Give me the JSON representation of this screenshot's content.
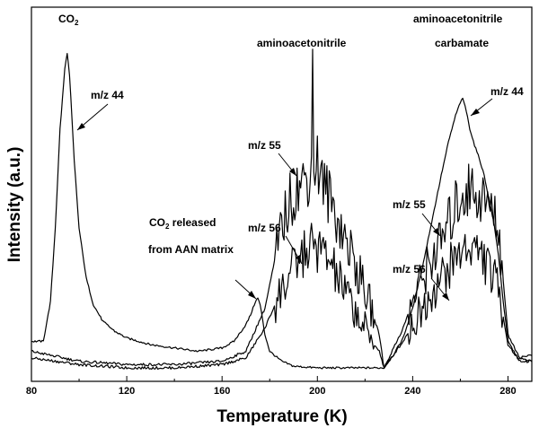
{
  "chart_data": {
    "type": "line",
    "title": "",
    "xlabel": "Temperature (K)",
    "ylabel": "Intensity (a.u.)",
    "xlim": [
      80,
      290
    ],
    "ylim": [
      0,
      1.0
    ],
    "grid": false,
    "xticks": [
      "80",
      "120",
      "160",
      "200",
      "240",
      "280"
    ],
    "series": [
      {
        "name": "m/z 44",
        "x": [
          80,
          85,
          88,
          90,
          92,
          94,
          95,
          96,
          98,
          100,
          103,
          106,
          110,
          115,
          120,
          130,
          140,
          150,
          160,
          165,
          168,
          170,
          172,
          174,
          175,
          176,
          178,
          180,
          185,
          190,
          200,
          210,
          220,
          228,
          232,
          236,
          240,
          244,
          248,
          252,
          255,
          258,
          260,
          261,
          262,
          264,
          266,
          268,
          270,
          272,
          274,
          276,
          278,
          280,
          284,
          290
        ],
        "y": [
          0.08,
          0.08,
          0.2,
          0.42,
          0.72,
          0.9,
          0.95,
          0.88,
          0.62,
          0.42,
          0.27,
          0.19,
          0.14,
          0.11,
          0.09,
          0.07,
          0.06,
          0.05,
          0.06,
          0.08,
          0.11,
          0.13,
          0.16,
          0.2,
          0.21,
          0.19,
          0.1,
          0.05,
          0.02,
          0.005,
          0.0,
          0.0,
          0.0,
          0.0,
          0.04,
          0.09,
          0.18,
          0.3,
          0.44,
          0.58,
          0.68,
          0.76,
          0.8,
          0.81,
          0.79,
          0.72,
          0.67,
          0.63,
          0.58,
          0.51,
          0.44,
          0.34,
          0.2,
          0.08,
          0.03,
          0.02
        ]
      },
      {
        "name": "m/z 55",
        "x": [
          80,
          100,
          120,
          140,
          160,
          170,
          178,
          182,
          186,
          190,
          194,
          198,
          200,
          202,
          206,
          210,
          214,
          218,
          222,
          226,
          228,
          232,
          236,
          240,
          244,
          248,
          252,
          256,
          260,
          264,
          268,
          272,
          276,
          280,
          285,
          290
        ],
        "y": [
          0.05,
          0.02,
          0.01,
          0.01,
          0.02,
          0.05,
          0.18,
          0.32,
          0.45,
          0.53,
          0.56,
          0.6,
          0.62,
          0.56,
          0.5,
          0.42,
          0.35,
          0.27,
          0.19,
          0.1,
          0.0,
          0.06,
          0.12,
          0.2,
          0.27,
          0.33,
          0.38,
          0.45,
          0.52,
          0.54,
          0.52,
          0.49,
          0.43,
          0.1,
          0.03,
          0.04
        ]
      },
      {
        "name": "m/z 56",
        "x": [
          80,
          100,
          120,
          140,
          160,
          170,
          178,
          184,
          190,
          194,
          198,
          202,
          206,
          210,
          214,
          218,
          222,
          226,
          228,
          232,
          236,
          240,
          244,
          248,
          252,
          256,
          260,
          264,
          268,
          272,
          276,
          280,
          285,
          290
        ],
        "y": [
          0.03,
          0.01,
          0.0,
          0.0,
          0.01,
          0.03,
          0.12,
          0.22,
          0.3,
          0.34,
          0.37,
          0.35,
          0.31,
          0.25,
          0.2,
          0.14,
          0.09,
          0.05,
          0.0,
          0.04,
          0.08,
          0.13,
          0.18,
          0.23,
          0.27,
          0.31,
          0.35,
          0.37,
          0.35,
          0.3,
          0.24,
          0.07,
          0.02,
          0.02
        ]
      }
    ],
    "annotations": {
      "co2": "CO",
      "co2_sub": "2",
      "mz44_left": "m/z 44",
      "co2_released_1": "CO",
      "co2_released_sub": "2",
      "co2_released_2": " released",
      "co2_released_3": "from AAN matrix",
      "aan": "aminoacetonitrile",
      "mz55_mid": "m/z 55",
      "mz56_mid": "m/z 56",
      "carbamate_1": "aminoacetonitrile",
      "carbamate_2": "carbamate",
      "mz44_right": "m/z 44",
      "mz55_right": "m/z 55",
      "mz56_right": "m/z 56"
    }
  }
}
